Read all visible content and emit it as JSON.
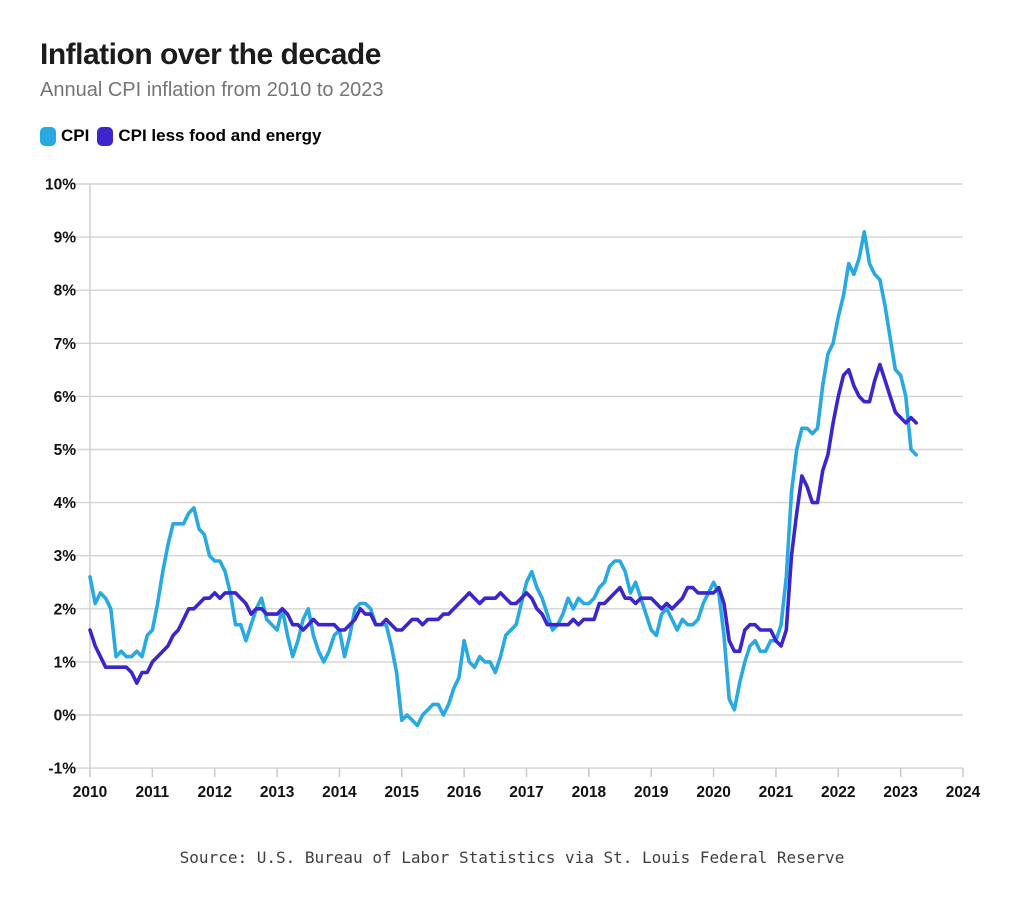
{
  "header": {
    "title": "Inflation over the decade",
    "subtitle": "Annual CPI inflation from 2010 to 2023"
  },
  "legend": [
    {
      "label": "CPI",
      "color": "#29A9E2"
    },
    {
      "label": "CPI less food and energy",
      "color": "#3B25CD"
    }
  ],
  "footer": {
    "source": "Source: U.S. Bureau of Labor Statistics via St. Louis Federal Reserve"
  },
  "chart_data": {
    "type": "line",
    "title": "Inflation over the decade",
    "subtitle": "Annual CPI inflation from 2010 to 2023",
    "xlabel": "",
    "ylabel": "",
    "xlim": [
      2010,
      2024
    ],
    "ylim": [
      -1,
      10
    ],
    "grid": "horizontal",
    "legend_position": "top-left",
    "x_unit": "monthly, starting January 2010",
    "x_ticks": [
      2010,
      2011,
      2012,
      2013,
      2014,
      2015,
      2016,
      2017,
      2018,
      2019,
      2020,
      2021,
      2022,
      2023,
      2024
    ],
    "y_ticks": [
      {
        "value": 10,
        "label": "10%"
      },
      {
        "value": 9,
        "label": "9%"
      },
      {
        "value": 8,
        "label": "8%"
      },
      {
        "value": 7,
        "label": "7%"
      },
      {
        "value": 6,
        "label": "6%"
      },
      {
        "value": 5,
        "label": "5%"
      },
      {
        "value": 4,
        "label": "4%"
      },
      {
        "value": 3,
        "label": "3%"
      },
      {
        "value": 2,
        "label": "2%"
      },
      {
        "value": 1,
        "label": "1%"
      },
      {
        "value": 0,
        "label": "0%"
      },
      {
        "value": -1,
        "label": "-1%"
      }
    ],
    "series": [
      {
        "name": "CPI",
        "color": "#29A9E2",
        "values": [
          2.6,
          2.1,
          2.3,
          2.2,
          2.0,
          1.1,
          1.2,
          1.1,
          1.1,
          1.2,
          1.1,
          1.5,
          1.6,
          2.1,
          2.7,
          3.2,
          3.6,
          3.6,
          3.6,
          3.8,
          3.9,
          3.5,
          3.4,
          3.0,
          2.9,
          2.9,
          2.7,
          2.3,
          1.7,
          1.7,
          1.4,
          1.7,
          2.0,
          2.2,
          1.8,
          1.7,
          1.6,
          2.0,
          1.5,
          1.1,
          1.4,
          1.8,
          2.0,
          1.5,
          1.2,
          1.0,
          1.2,
          1.5,
          1.6,
          1.1,
          1.5,
          2.0,
          2.1,
          2.1,
          2.0,
          1.7,
          1.7,
          1.7,
          1.3,
          0.8,
          -0.1,
          0.0,
          -0.1,
          -0.2,
          0.0,
          0.1,
          0.2,
          0.2,
          0.0,
          0.2,
          0.5,
          0.7,
          1.4,
          1.0,
          0.9,
          1.1,
          1.0,
          1.0,
          0.8,
          1.1,
          1.5,
          1.6,
          1.7,
          2.1,
          2.5,
          2.7,
          2.4,
          2.2,
          1.9,
          1.6,
          1.7,
          1.9,
          2.2,
          2.0,
          2.2,
          2.1,
          2.1,
          2.2,
          2.4,
          2.5,
          2.8,
          2.9,
          2.9,
          2.7,
          2.3,
          2.5,
          2.2,
          1.9,
          1.6,
          1.5,
          1.9,
          2.0,
          1.8,
          1.6,
          1.8,
          1.7,
          1.7,
          1.8,
          2.1,
          2.3,
          2.5,
          2.3,
          1.5,
          0.3,
          0.1,
          0.6,
          1.0,
          1.3,
          1.4,
          1.2,
          1.2,
          1.4,
          1.4,
          1.7,
          2.6,
          4.2,
          5.0,
          5.4,
          5.4,
          5.3,
          5.4,
          6.2,
          6.8,
          7.0,
          7.5,
          7.9,
          8.5,
          8.3,
          8.6,
          9.1,
          8.5,
          8.3,
          8.2,
          7.7,
          7.1,
          6.5,
          6.4,
          6.0,
          5.0,
          4.9
        ]
      },
      {
        "name": "CPI less food and energy",
        "color": "#3B25CD",
        "values": [
          1.6,
          1.3,
          1.1,
          0.9,
          0.9,
          0.9,
          0.9,
          0.9,
          0.8,
          0.6,
          0.8,
          0.8,
          1.0,
          1.1,
          1.2,
          1.3,
          1.5,
          1.6,
          1.8,
          2.0,
          2.0,
          2.1,
          2.2,
          2.2,
          2.3,
          2.2,
          2.3,
          2.3,
          2.3,
          2.2,
          2.1,
          1.9,
          2.0,
          2.0,
          1.9,
          1.9,
          1.9,
          2.0,
          1.9,
          1.7,
          1.7,
          1.6,
          1.7,
          1.8,
          1.7,
          1.7,
          1.7,
          1.7,
          1.6,
          1.6,
          1.7,
          1.8,
          2.0,
          1.9,
          1.9,
          1.7,
          1.7,
          1.8,
          1.7,
          1.6,
          1.6,
          1.7,
          1.8,
          1.8,
          1.7,
          1.8,
          1.8,
          1.8,
          1.9,
          1.9,
          2.0,
          2.1,
          2.2,
          2.3,
          2.2,
          2.1,
          2.2,
          2.2,
          2.2,
          2.3,
          2.2,
          2.1,
          2.1,
          2.2,
          2.3,
          2.2,
          2.0,
          1.9,
          1.7,
          1.7,
          1.7,
          1.7,
          1.7,
          1.8,
          1.7,
          1.8,
          1.8,
          1.8,
          2.1,
          2.1,
          2.2,
          2.3,
          2.4,
          2.2,
          2.2,
          2.1,
          2.2,
          2.2,
          2.2,
          2.1,
          2.0,
          2.1,
          2.0,
          2.1,
          2.2,
          2.4,
          2.4,
          2.3,
          2.3,
          2.3,
          2.3,
          2.4,
          2.1,
          1.4,
          1.2,
          1.2,
          1.6,
          1.7,
          1.7,
          1.6,
          1.6,
          1.6,
          1.4,
          1.3,
          1.6,
          3.0,
          3.8,
          4.5,
          4.3,
          4.0,
          4.0,
          4.6,
          4.9,
          5.5,
          6.0,
          6.4,
          6.5,
          6.2,
          6.0,
          5.9,
          5.9,
          6.3,
          6.6,
          6.3,
          6.0,
          5.7,
          5.6,
          5.5,
          5.6,
          5.5
        ]
      }
    ]
  }
}
